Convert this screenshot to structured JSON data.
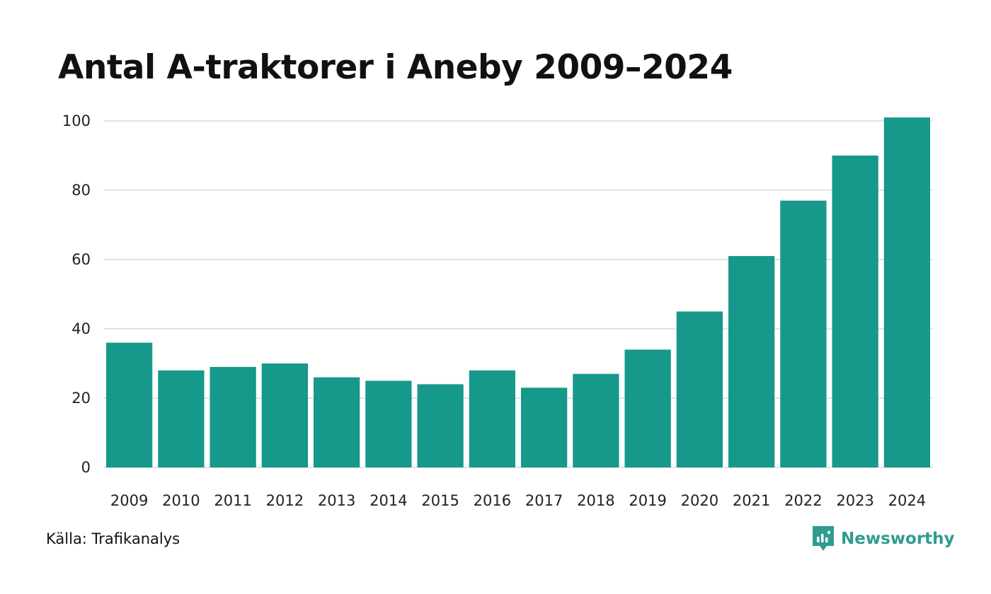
{
  "title": "Antal A-traktorer i Aneby 2009–2024",
  "source": "Källa: Trafikanalys",
  "brand": {
    "name": "Newsworthy",
    "icon": "newsworthy-logo-icon",
    "color": "#2e9c8f"
  },
  "chart_data": {
    "type": "bar",
    "categories": [
      "2009",
      "2010",
      "2011",
      "2012",
      "2013",
      "2014",
      "2015",
      "2016",
      "2017",
      "2018",
      "2019",
      "2020",
      "2021",
      "2022",
      "2023",
      "2024"
    ],
    "values": [
      36,
      28,
      29,
      30,
      26,
      25,
      24,
      28,
      23,
      27,
      34,
      45,
      61,
      77,
      90,
      101
    ],
    "title": "Antal A-traktorer i Aneby 2009–2024",
    "xlabel": "",
    "ylabel": "",
    "ylim": [
      0,
      100
    ],
    "yticks": [
      "0",
      "20",
      "40",
      "60",
      "80",
      "100"
    ],
    "grid": true,
    "legend": "none",
    "bar_color": "#16988a",
    "grid_color": "#e3e3e3"
  }
}
